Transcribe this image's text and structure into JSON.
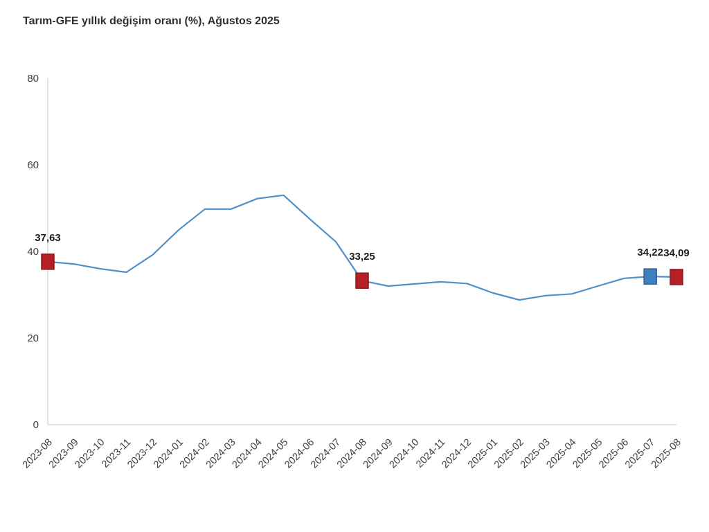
{
  "page": {
    "title": "Tarım-GFE yıllık değişim oranı (%), Ağustos 2025"
  },
  "chart_data": {
    "type": "line",
    "title": "Tarım-GFE yıllık değişim oranı (%), Ağustos 2025",
    "categories": [
      "2023-08",
      "2023-09",
      "2023-10",
      "2023-11",
      "2023-12",
      "2024-01",
      "2024-02",
      "2024-03",
      "2024-04",
      "2024-05",
      "2024-06",
      "2024-07",
      "2024-08",
      "2024-09",
      "2024-10",
      "2024-11",
      "2024-12",
      "2025-01",
      "2025-02",
      "2025-03",
      "2025-04",
      "2025-05",
      "2025-06",
      "2025-07",
      "2025-08"
    ],
    "series": [
      {
        "name": "Tarım-GFE yıllık değişim oranı (%)",
        "values": [
          37.63,
          37.1,
          36.0,
          35.2,
          39.2,
          45.0,
          49.8,
          49.8,
          52.2,
          53.0,
          47.5,
          42.2,
          33.25,
          32.0,
          32.5,
          33.0,
          32.6,
          30.4,
          28.8,
          29.8,
          30.2,
          32.0,
          33.8,
          34.22,
          34.09
        ]
      }
    ],
    "xlabel": "",
    "ylabel": "",
    "ylim": [
      0,
      80
    ],
    "yticks": [
      0,
      20,
      40,
      60,
      80
    ],
    "grid": false,
    "legend_position": "none",
    "x_label_rotation_deg": 45,
    "highlighted_points": [
      {
        "category": "2023-08",
        "value_label": "37,63",
        "color": "#b42025",
        "border": "#8c181d"
      },
      {
        "category": "2024-08",
        "value_label": "33,25",
        "color": "#b42025",
        "border": "#8c181d"
      },
      {
        "category": "2025-07",
        "value_label": "34,22",
        "color": "#3f80c0",
        "border": "#2e5f95"
      },
      {
        "category": "2025-08",
        "value_label": "34,09",
        "color": "#b42025",
        "border": "#8c181d"
      }
    ],
    "colors": {
      "line": "#4f8fca",
      "axis": "#d9d9d9",
      "tick_text": "#404040",
      "data_label_text": "#1d1d1d"
    }
  }
}
